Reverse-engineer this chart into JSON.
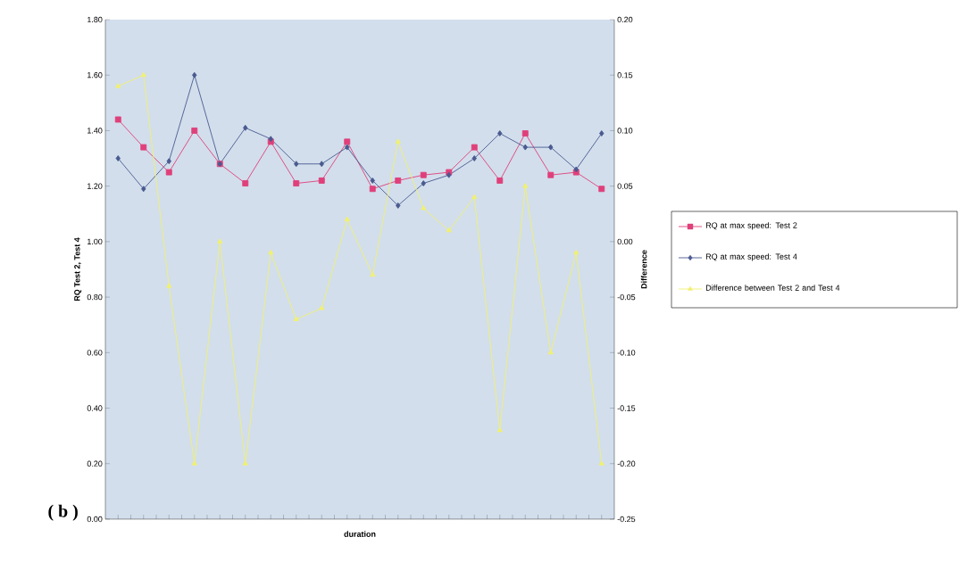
{
  "chart_data": {
    "type": "line",
    "xlabel": "duration",
    "ylabel": "RQ Test 2, Test 4",
    "y2label": "Difference",
    "categories": [
      null,
      null,
      null,
      null,
      null,
      null,
      null,
      null,
      null,
      null,
      null,
      null,
      null,
      null,
      null,
      null,
      null,
      null,
      null,
      null
    ],
    "series": [
      {
        "name": "RQ at max speed: Test 2",
        "color": "#e0407a",
        "marker": "square",
        "values": [
          1.44,
          1.34,
          1.25,
          1.4,
          1.28,
          1.21,
          1.36,
          1.21,
          1.22,
          1.36,
          1.19,
          1.22,
          1.24,
          1.25,
          1.34,
          1.22,
          1.39,
          1.24,
          1.25,
          1.19
        ]
      },
      {
        "name": "RQ at max speed: Test 4",
        "color": "#4a5a90",
        "marker": "diamond",
        "values": [
          1.3,
          1.19,
          1.29,
          1.6,
          1.28,
          1.41,
          1.37,
          1.28,
          1.28,
          1.34,
          1.22,
          1.13,
          1.21,
          1.24,
          1.3,
          1.39,
          1.34,
          1.34,
          1.26,
          1.39
        ]
      },
      {
        "name": "Difference between Test 2 and Test 4",
        "color": "#f0f070",
        "marker": "triangle",
        "axis": "y2",
        "values": [
          0.14,
          0.15,
          -0.04,
          -0.2,
          0.0,
          -0.2,
          -0.01,
          -0.07,
          -0.06,
          0.02,
          -0.03,
          0.09,
          0.03,
          0.01,
          0.04,
          -0.17,
          0.05,
          -0.1,
          -0.01,
          -0.2
        ]
      }
    ],
    "ylim": [
      0,
      1.8
    ],
    "yticks": [
      {
        "value": 0,
        "label": "0.00"
      },
      {
        "value": 0.2,
        "label": "0.20"
      },
      {
        "value": 0.4,
        "label": "0.40"
      },
      {
        "value": 0.6,
        "label": "0.60"
      },
      {
        "value": 0.8,
        "label": "0.80"
      },
      {
        "value": 1.0,
        "label": "1.00"
      },
      {
        "value": 1.2,
        "label": "1.20"
      },
      {
        "value": 1.4,
        "label": "1.40"
      },
      {
        "value": 1.6,
        "label": "1.60"
      },
      {
        "value": 1.8,
        "label": "1.80"
      }
    ],
    "y2lim": [
      -0.25,
      0.2
    ],
    "y2ticks": [
      {
        "value": -0.25,
        "label": "-0.25"
      },
      {
        "value": -0.2,
        "label": "-0.20"
      },
      {
        "value": -0.15,
        "label": "-0.15"
      },
      {
        "value": -0.1,
        "label": "-0.10"
      },
      {
        "value": -0.05,
        "label": "-0.05"
      },
      {
        "value": 0,
        "label": "0.00"
      },
      {
        "value": 0.05,
        "label": "0.05"
      },
      {
        "value": 0.1,
        "label": "0.10"
      },
      {
        "value": 0.15,
        "label": "0.15"
      },
      {
        "value": 0.2,
        "label": "0.20"
      }
    ],
    "grid": false,
    "legend": "right",
    "line_style": "solid",
    "annotations": [
      "( b )"
    ]
  }
}
